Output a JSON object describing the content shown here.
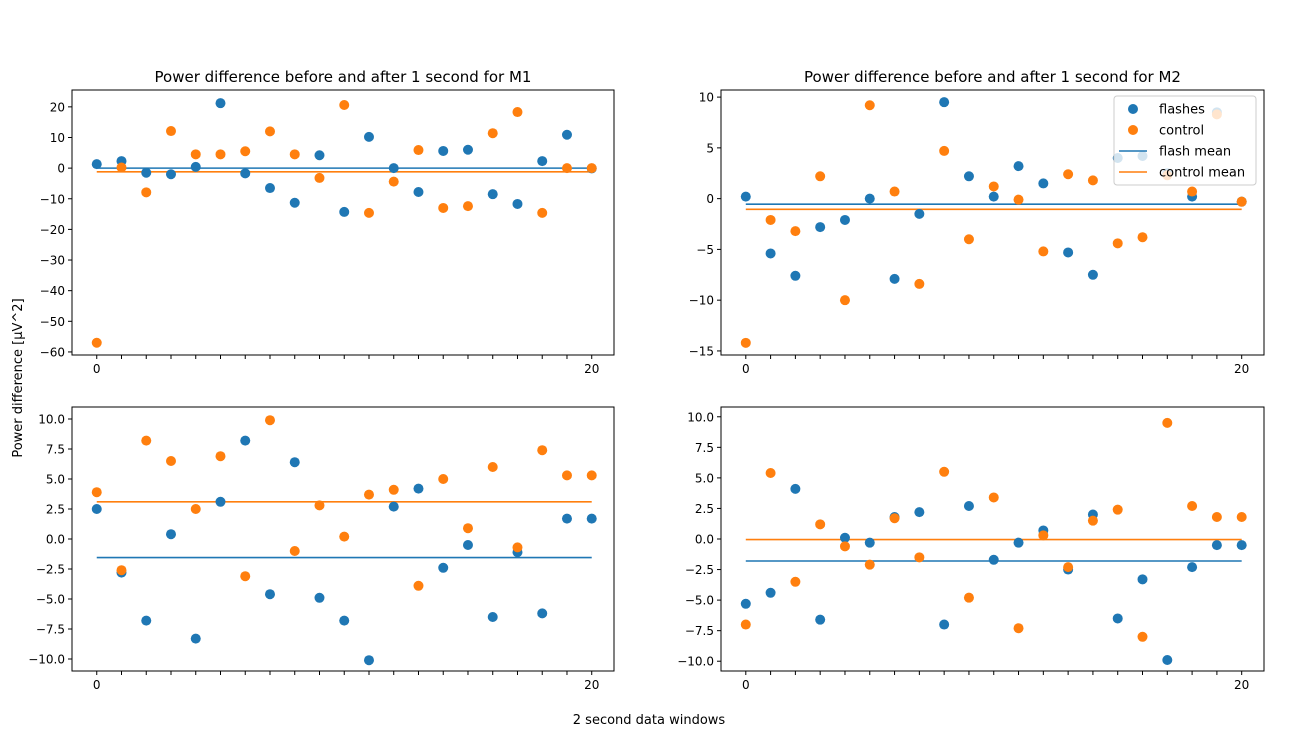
{
  "figure": {
    "xlabel": "2 second data windows",
    "ylabel": "Power difference [µV^2]"
  },
  "colors": {
    "flashes": "#1f77b4",
    "control": "#ff7f0e"
  },
  "legend": {
    "placement": "upper-right of top-right panel",
    "entries": [
      "flashes",
      "control",
      "flash mean",
      "control mean"
    ]
  },
  "chart_data": [
    {
      "type": "scatter",
      "title": "Power difference before and after 1 second for M1",
      "xlim": [
        -1,
        20.9
      ],
      "ylim": [
        -61,
        25.5
      ],
      "xticks": [
        0,
        20
      ],
      "yticks": [
        20,
        10,
        0,
        -10,
        -20,
        -30,
        -40,
        -50,
        -60
      ],
      "series": [
        {
          "name": "flashes",
          "x": [
            0,
            1,
            2,
            3,
            4,
            5,
            6,
            7,
            8,
            9,
            10,
            11,
            12,
            13,
            14,
            15,
            16,
            17,
            18,
            19,
            20
          ],
          "values": [
            1.3,
            2.3,
            -1.5,
            -2.0,
            0.4,
            21.2,
            -1.7,
            -6.5,
            -11.3,
            4.2,
            -14.3,
            10.2,
            0.0,
            -7.8,
            5.6,
            6.0,
            -8.5,
            -11.7,
            2.3,
            10.9,
            -0.1
          ]
        },
        {
          "name": "control",
          "x": [
            0,
            1,
            2,
            3,
            4,
            5,
            6,
            7,
            8,
            9,
            10,
            11,
            12,
            13,
            14,
            15,
            16,
            17,
            18,
            19,
            20
          ],
          "values": [
            -57.0,
            0.2,
            -7.9,
            12.1,
            4.5,
            4.5,
            5.5,
            12.0,
            4.5,
            -3.2,
            20.6,
            -14.6,
            -4.4,
            5.9,
            -13.0,
            -12.4,
            11.4,
            18.3,
            -14.6,
            0.0,
            0.0
          ]
        }
      ],
      "means": {
        "flash mean": 0.0,
        "control mean": -1.2
      },
      "mean_range": [
        0,
        20
      ]
    },
    {
      "type": "scatter",
      "title": "Power difference before and after 1 second for M2",
      "xlim": [
        -1,
        20.9
      ],
      "ylim": [
        -15.4,
        10.7
      ],
      "xticks": [
        0,
        20
      ],
      "yticks": [
        10,
        5,
        0,
        -5,
        -10,
        -15
      ],
      "series": [
        {
          "name": "flashes",
          "x": [
            0,
            1,
            2,
            3,
            4,
            5,
            6,
            7,
            8,
            9,
            10,
            11,
            12,
            13,
            14,
            15,
            16,
            17,
            18,
            19,
            20
          ],
          "values": [
            0.2,
            -5.4,
            -7.6,
            -2.8,
            -2.1,
            0.0,
            -7.9,
            -1.5,
            9.5,
            2.2,
            0.2,
            3.2,
            1.5,
            -5.3,
            -7.5,
            4.0,
            4.2,
            2.5,
            0.2,
            8.5,
            -0.3
          ]
        },
        {
          "name": "control",
          "x": [
            0,
            1,
            2,
            3,
            4,
            5,
            6,
            7,
            8,
            9,
            10,
            11,
            12,
            13,
            14,
            15,
            16,
            17,
            18,
            19,
            20
          ],
          "values": [
            -14.2,
            -2.1,
            -3.2,
            2.2,
            -10.0,
            9.2,
            0.7,
            -8.4,
            4.7,
            -4.0,
            1.2,
            -0.1,
            -5.2,
            2.4,
            1.8,
            -4.4,
            -3.8,
            2.3,
            0.7,
            8.3,
            -0.3
          ]
        }
      ],
      "means": {
        "flash mean": -0.55,
        "control mean": -1.05
      },
      "mean_range": [
        0,
        20
      ]
    },
    {
      "type": "scatter",
      "title": "",
      "xlim": [
        -1,
        20.9
      ],
      "ylim": [
        -11.0,
        11.0
      ],
      "xticks": [
        0,
        20
      ],
      "yticks": [
        10.0,
        7.5,
        5.0,
        2.5,
        0.0,
        -2.5,
        -5.0,
        -7.5,
        -10.0
      ],
      "series": [
        {
          "name": "flashes",
          "x": [
            0,
            1,
            2,
            3,
            4,
            5,
            6,
            7,
            8,
            9,
            10,
            11,
            12,
            13,
            14,
            15,
            16,
            17,
            18,
            19,
            20
          ],
          "values": [
            2.5,
            -2.8,
            -6.8,
            0.4,
            -8.3,
            3.1,
            8.2,
            -4.6,
            6.4,
            -4.9,
            -6.8,
            -10.1,
            2.7,
            4.2,
            -2.4,
            -0.5,
            -6.5,
            -1.1,
            -6.2,
            1.7,
            1.7
          ]
        },
        {
          "name": "control",
          "x": [
            0,
            1,
            2,
            3,
            4,
            5,
            6,
            7,
            8,
            9,
            10,
            11,
            12,
            13,
            14,
            15,
            16,
            17,
            18,
            19,
            20
          ],
          "values": [
            3.9,
            -2.6,
            8.2,
            6.5,
            2.5,
            6.9,
            -3.1,
            9.9,
            -1.0,
            2.8,
            0.2,
            3.7,
            4.1,
            -3.9,
            5.0,
            0.9,
            6.0,
            -0.7,
            7.4,
            5.3,
            5.3
          ]
        }
      ],
      "means": {
        "flash mean": -1.55,
        "control mean": 3.1
      },
      "mean_range": [
        0,
        20
      ]
    },
    {
      "type": "scatter",
      "title": "",
      "xlim": [
        -1,
        20.9
      ],
      "ylim": [
        -10.8,
        10.8
      ],
      "xticks": [
        0,
        20
      ],
      "yticks": [
        10.0,
        7.5,
        5.0,
        2.5,
        0.0,
        -2.5,
        -5.0,
        -7.5,
        -10.0
      ],
      "series": [
        {
          "name": "flashes",
          "x": [
            0,
            1,
            2,
            3,
            4,
            5,
            6,
            7,
            8,
            9,
            10,
            11,
            12,
            13,
            14,
            15,
            16,
            17,
            18,
            19,
            20
          ],
          "values": [
            -5.3,
            -4.4,
            4.1,
            -6.6,
            0.1,
            -0.3,
            1.8,
            2.2,
            -7.0,
            2.7,
            -1.7,
            -0.3,
            0.7,
            -2.5,
            2.0,
            -6.5,
            -3.3,
            -9.9,
            -2.3,
            -0.5,
            -0.5
          ]
        },
        {
          "name": "control",
          "x": [
            0,
            1,
            2,
            3,
            4,
            5,
            6,
            7,
            8,
            9,
            10,
            11,
            12,
            13,
            14,
            15,
            16,
            17,
            18,
            19,
            20
          ],
          "values": [
            -7.0,
            5.4,
            -3.5,
            1.2,
            -0.6,
            -2.1,
            1.7,
            -1.5,
            5.5,
            -4.8,
            3.4,
            -7.3,
            0.3,
            -2.3,
            1.5,
            2.4,
            -8.0,
            9.5,
            2.7,
            1.8,
            1.8
          ]
        }
      ],
      "means": {
        "flash mean": -1.8,
        "control mean": -0.05
      },
      "mean_range": [
        0,
        20
      ]
    }
  ]
}
